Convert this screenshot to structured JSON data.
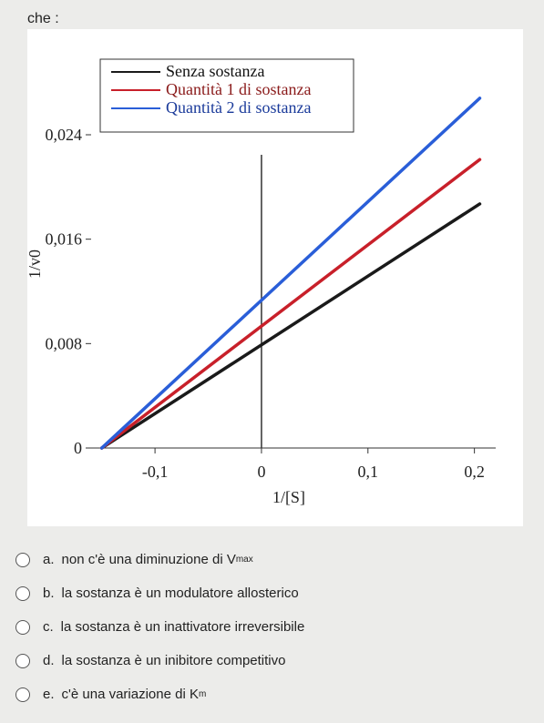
{
  "question": {
    "intro": "che :"
  },
  "chart_data": {
    "type": "line",
    "xlabel": "1/[S]",
    "ylabel": "1/v0",
    "xlim": [
      -0.16,
      0.22
    ],
    "ylim": [
      0,
      0.03
    ],
    "x_ticks": [
      {
        "value": -0.1,
        "label": "-0,1"
      },
      {
        "value": 0,
        "label": "0"
      },
      {
        "value": 0.1,
        "label": "0,1"
      },
      {
        "value": 0.2,
        "label": "0,2"
      }
    ],
    "y_ticks": [
      {
        "value": 0,
        "label": "0"
      },
      {
        "value": 0.008,
        "label": "0,008"
      },
      {
        "value": 0.016,
        "label": "0,016"
      },
      {
        "value": 0.024,
        "label": "0,024"
      }
    ],
    "legend_position": "top-right",
    "series": [
      {
        "name": "Senza sostanza",
        "color": "#1a1a1a",
        "x": [
          -0.15,
          0.205
        ],
        "y": [
          0,
          0.0187
        ]
      },
      {
        "name": "Quantità 1 di sostanza",
        "color": "#c8202a",
        "x": [
          -0.15,
          0.205
        ],
        "y": [
          0,
          0.0221
        ]
      },
      {
        "name": "Quantità 2 di sostanza",
        "color": "#2a5ed8",
        "x": [
          -0.15,
          0.205
        ],
        "y": [
          0,
          0.0268
        ]
      }
    ]
  },
  "options": [
    {
      "letter": "a.",
      "text": "non c'è una diminuzione di V",
      "sub": "max"
    },
    {
      "letter": "b.",
      "text": "la sostanza è un modulatore allosterico",
      "sub": ""
    },
    {
      "letter": "c.",
      "text": "la sostanza è un inattivatore irreversibile",
      "sub": ""
    },
    {
      "letter": "d.",
      "text": "la sostanza è un inibitore competitivo",
      "sub": ""
    },
    {
      "letter": "e.",
      "text": "c'è una variazione di K",
      "sub": "m"
    }
  ]
}
